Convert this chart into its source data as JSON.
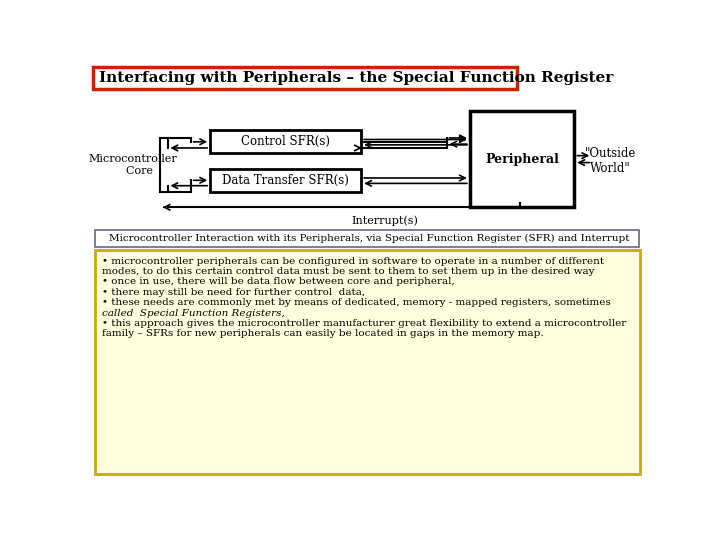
{
  "title": "Interfacing with Peripherals – the Special Function Register",
  "title_color": "#cc2200",
  "bg_color": "#ffffff",
  "subtitle": "Microcontroller Interaction with its Peripherals, via Special Function Register (SFR) and Interrupt",
  "bullet_box_bg": "#ffffe0",
  "bullet_box_border": "#ccaa00",
  "diagram": {
    "mc_label": "Microcontroller\n    Core",
    "ctrl_label": "Control SFR(s)",
    "data_label": "Data Transfer SFR(s)",
    "peri_label": "Peripheral",
    "outside_label": "\"Outside\nWorld\"",
    "interrupt_label": "Interrupt(s)"
  },
  "lines_data": [
    [
      "• microcontroller peripherals can be configured in software to operate in a number of different",
      false
    ],
    [
      "modes, to do this certain control data must be sent to them to set them up in the desired way",
      false
    ],
    [
      "• once in use, there will be data flow between core and peripheral,",
      false
    ],
    [
      "• there may still be need for further control  data,",
      false
    ],
    [
      "• these needs are commonly met by means of dedicated, memory - mapped registers, sometimes",
      false
    ],
    [
      "called  Special Function Registers,",
      true
    ],
    [
      "• this approach gives the microcontroller manufacturer great flexibility to extend a microcontroller",
      false
    ],
    [
      "family – SFRs for new peripherals can easily be located in gaps in the memory map.",
      false
    ]
  ]
}
